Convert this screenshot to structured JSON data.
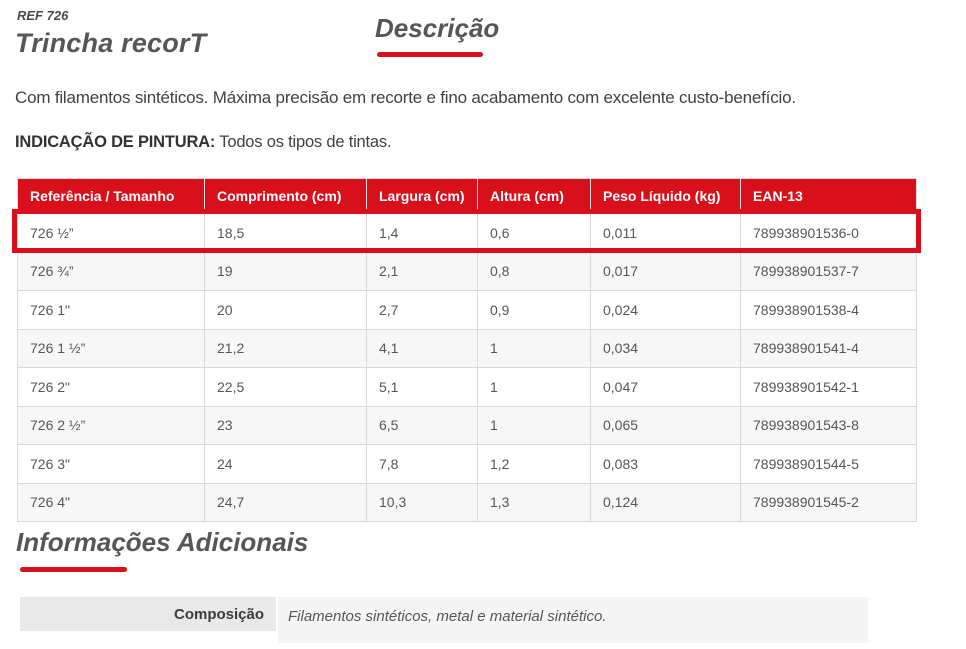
{
  "header": {
    "ref": "REF 726",
    "title": "Trincha recorT",
    "tab_label": "Descrição",
    "description": "Com filamentos sintéticos. Máxima precisão em recorte e fino acabamento com excelente custo-benefício.",
    "indication_label": "INDICAÇÃO DE PINTURA:",
    "indication_value": " Todos os tipos de tintas."
  },
  "colors": {
    "accent_red": "#d8101c",
    "table_header_bg": "#d8101c",
    "table_header_text": "#ffffff",
    "zebra_row_bg": "#f7f7f7",
    "cell_border": "#d9d9d9"
  },
  "table": {
    "columns": [
      "Referência / Tamanho",
      "Comprimento (cm)",
      "Largura (cm)",
      "Altura (cm)",
      "Peso Líquido (kg)",
      "EAN-13"
    ],
    "rows": [
      [
        "726 ½”",
        "18,5",
        "1,4",
        "0,6",
        "0,011",
        "789938901536-0"
      ],
      [
        "726 ¾”",
        "19",
        "2,1",
        "0,8",
        "0,017",
        "789938901537-7"
      ],
      [
        "726 1\"",
        "20",
        "2,7",
        "0,9",
        "0,024",
        "789938901538-4"
      ],
      [
        "726 1 ½”",
        "21,2",
        "4,1",
        "1",
        "0,034",
        "789938901541-4"
      ],
      [
        "726 2\"",
        "22,5",
        "5,1",
        "1",
        "0,047",
        "789938901542-1"
      ],
      [
        "726 2 ½”",
        "23",
        "6,5",
        "1",
        "0,065",
        "789938901543-8"
      ],
      [
        "726 3\"",
        "24",
        "7,8",
        "1,2",
        "0,083",
        "789938901544-5"
      ],
      [
        "726 4\"",
        "24,7",
        "10,3",
        "1,3",
        "0,124",
        "789938901545-2"
      ]
    ],
    "highlighted_row": 0
  },
  "additional": {
    "title": "Informações Adicionais",
    "rows": [
      {
        "label": "Composição",
        "value": "Filamentos sintéticos, metal e material sintético."
      }
    ]
  }
}
